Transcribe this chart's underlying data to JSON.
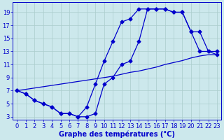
{
  "title": "Graphe des températures (°C)",
  "bg_color": "#cce8ec",
  "grid_color": "#aacccc",
  "line_color": "#0000cc",
  "xlim": [
    -0.5,
    23.5
  ],
  "ylim": [
    2.5,
    20.5
  ],
  "xticks": [
    0,
    1,
    2,
    3,
    4,
    5,
    6,
    7,
    8,
    9,
    10,
    11,
    12,
    13,
    14,
    15,
    16,
    17,
    18,
    19,
    20,
    21,
    22,
    23
  ],
  "yticks": [
    3,
    5,
    7,
    9,
    11,
    13,
    15,
    17,
    19
  ],
  "curve_min_x": [
    0,
    1,
    2,
    3,
    4,
    5,
    6,
    7,
    8,
    9,
    10,
    11,
    12,
    13,
    14,
    15,
    16,
    17,
    18,
    19,
    20,
    21,
    22,
    23
  ],
  "curve_min_y": [
    7,
    6.5,
    5.5,
    5.0,
    4.5,
    3.5,
    3.5,
    3.0,
    4.5,
    8.0,
    11.5,
    14.5,
    17.5,
    18.0,
    19.5,
    19.5,
    19.5,
    19.5,
    19.0,
    19.0,
    16.0,
    16.0,
    13.0,
    13.0
  ],
  "curve_max_x": [
    0,
    1,
    2,
    3,
    4,
    5,
    6,
    7,
    8,
    9,
    10,
    11,
    12,
    13,
    14,
    15,
    16,
    17,
    18,
    19,
    20,
    21,
    22,
    23
  ],
  "curve_max_y": [
    7,
    6.5,
    5.5,
    5.0,
    4.5,
    3.5,
    3.5,
    3.0,
    3.0,
    3.5,
    8.0,
    9.0,
    11.0,
    11.5,
    14.5,
    19.5,
    19.5,
    19.5,
    19.0,
    19.0,
    16.0,
    13.0,
    13.0,
    12.5
  ],
  "curve_line_x": [
    0,
    1,
    2,
    3,
    4,
    5,
    6,
    7,
    8,
    9,
    10,
    11,
    12,
    13,
    14,
    15,
    16,
    17,
    18,
    19,
    20,
    21,
    22,
    23
  ],
  "curve_line_y": [
    7.0,
    7.2,
    7.4,
    7.6,
    7.8,
    8.0,
    8.2,
    8.4,
    8.6,
    8.8,
    9.0,
    9.2,
    9.5,
    9.8,
    10.0,
    10.3,
    10.6,
    11.0,
    11.3,
    11.6,
    12.0,
    12.3,
    12.5,
    12.5
  ],
  "marker_size": 2.5,
  "linewidth": 0.9,
  "xlabel_size": 7,
  "tick_size": 6
}
